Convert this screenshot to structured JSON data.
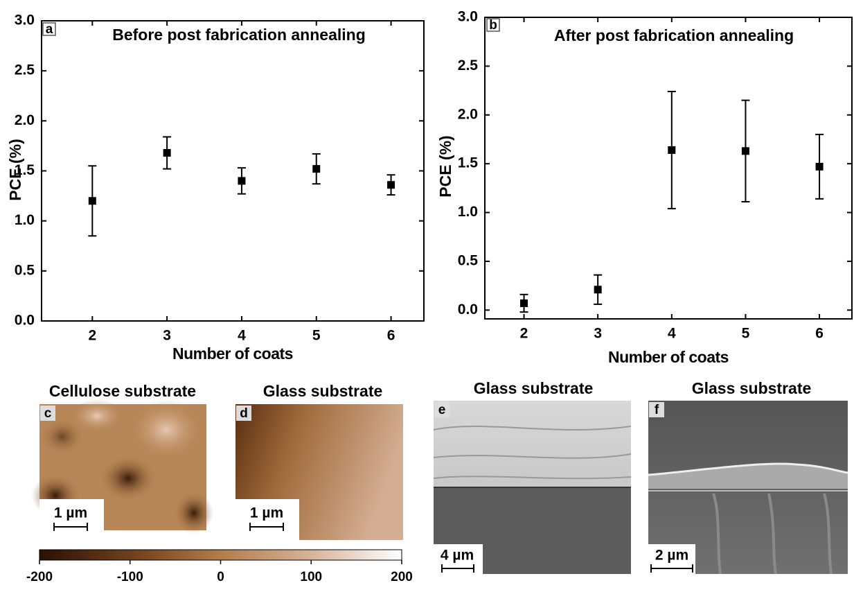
{
  "chart_data": [
    {
      "type": "scatter",
      "panel_label": "a",
      "title": "Before post fabrication annealing",
      "x_label": "Number of coats",
      "y_label": "PCE (%)",
      "x": [
        2,
        3,
        4,
        5,
        6
      ],
      "values": [
        1.2,
        1.68,
        1.4,
        1.52,
        1.36
      ],
      "errors": [
        0.35,
        0.16,
        0.13,
        0.15,
        0.1
      ],
      "color": "#000000",
      "xlim": [
        1.32,
        6.44
      ],
      "xticks": [
        2,
        3,
        4,
        5,
        6
      ],
      "ylim": [
        0,
        3
      ],
      "yticks": [
        {
          "value": 0,
          "label": "0.0"
        },
        0.5,
        {
          "value": 1,
          "label": "1.0"
        },
        1.5,
        {
          "value": 2,
          "label": "2.0"
        },
        2.5,
        {
          "value": 3,
          "label": "3.0"
        }
      ]
    },
    {
      "type": "scatter",
      "panel_label": "b",
      "title": "After post fabrication annealing",
      "x_label": "Number of coats",
      "y_label": "PCE (%)",
      "x": [
        2,
        3,
        4,
        5,
        6
      ],
      "values": [
        0.07,
        0.21,
        1.64,
        1.63,
        1.47
      ],
      "errors": [
        0.09,
        0.15,
        0.6,
        0.52,
        0.33
      ],
      "color": "#000000",
      "xlim": [
        1.47,
        6.44
      ],
      "xticks": [
        2,
        3,
        4,
        5,
        6
      ],
      "ylim": [
        -0.09,
        3
      ],
      "yticks": [
        {
          "value": 0,
          "label": "0.0"
        },
        0.5,
        {
          "value": 1,
          "label": "1.0"
        },
        1.5,
        {
          "value": 2,
          "label": "2.0"
        },
        2.5,
        {
          "value": 3,
          "label": "3.0"
        }
      ]
    }
  ],
  "panels": [
    {
      "label": "c",
      "title": "Cellulose substrate",
      "scale": "1 µm"
    },
    {
      "label": "d",
      "title": "Glass substrate",
      "scale": "1 µm"
    },
    {
      "label": "e",
      "title": "Glass substrate",
      "scale": "4 µm"
    },
    {
      "label": "f",
      "title": "Glass substrate",
      "scale": "2 µm"
    }
  ],
  "colorbar": {
    "lim": [
      -200,
      200
    ],
    "ticks": [
      -200,
      -100,
      0,
      100,
      200
    ]
  }
}
